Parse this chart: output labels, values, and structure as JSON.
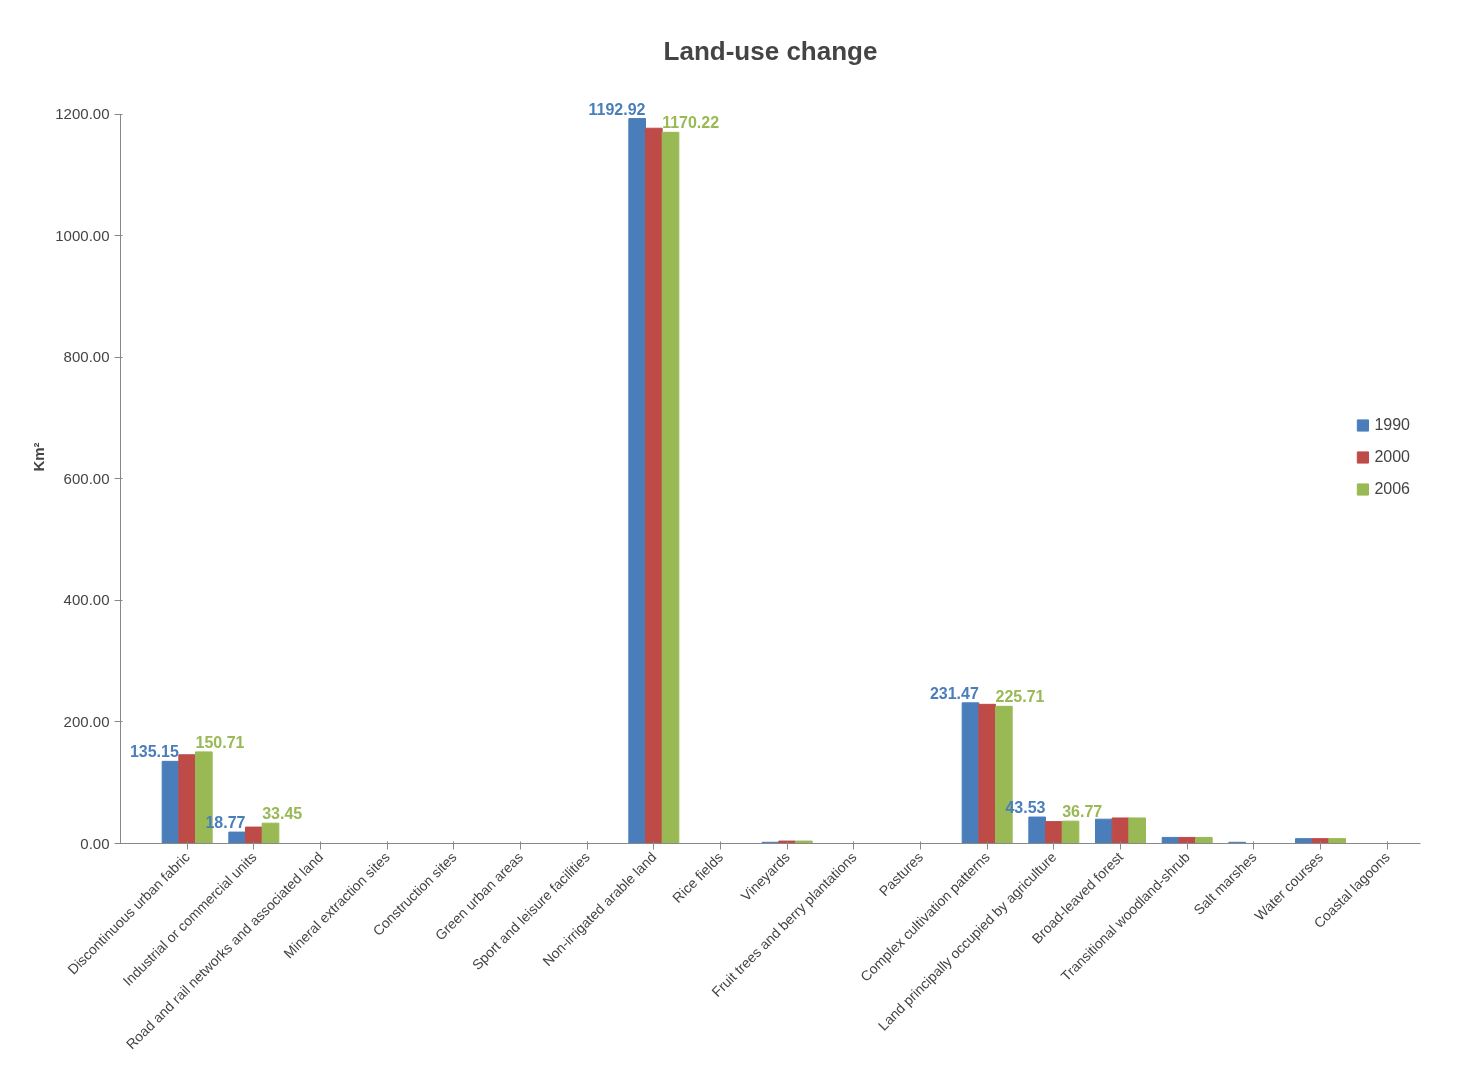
{
  "chart_data": {
    "type": "bar",
    "title": "Land-use change",
    "ylabel": "Km²",
    "categories": [
      "Discontinuous urban fabric",
      "Industrial or commercial units",
      "Road and rail networks and associated land",
      "Mineral extraction sites",
      "Construction sites",
      "Green urban areas",
      "Sport and leisure facilities",
      "Non-irrigated arable land",
      "Rice fields",
      "Vineyards",
      "Fruit trees and berry plantations",
      "Pastures",
      "Complex cultivation patterns",
      "Land principally occupied by agriculture",
      "Broad-leaved forest",
      "Transitional woodland-shrub",
      "Salt marshes",
      "Water courses",
      "Coastal lagoons"
    ],
    "series": [
      {
        "name": "1990",
        "color": "#4a7ebb",
        "values": [
          135.15,
          18.77,
          0,
          0,
          0,
          0,
          0,
          1192.92,
          0,
          2,
          0,
          0,
          231.47,
          43.53,
          40,
          10,
          2,
          8,
          0
        ],
        "value_labels": [
          "135.15",
          "18.77",
          null,
          null,
          null,
          null,
          null,
          "1192.92",
          null,
          null,
          null,
          null,
          "231.47",
          "43.53",
          null,
          null,
          null,
          null,
          null
        ]
      },
      {
        "name": "2000",
        "color": "#be4b48",
        "values": [
          146,
          27,
          0,
          0,
          0,
          0,
          0,
          1177,
          0,
          4,
          0,
          0,
          229,
          36,
          42,
          10,
          0,
          8,
          0
        ]
      },
      {
        "name": "2006",
        "color": "#98b954",
        "values": [
          150.71,
          33.45,
          0,
          0,
          0,
          0,
          0,
          1170.22,
          0,
          4,
          0,
          0,
          225.71,
          36.77,
          42,
          10,
          0,
          8,
          0
        ],
        "value_labels": [
          "150.71",
          "33.45",
          null,
          null,
          null,
          null,
          null,
          "1170.22",
          null,
          null,
          null,
          null,
          "225.71",
          "36.77",
          null,
          null,
          null,
          null,
          null
        ]
      }
    ],
    "ylim": [
      0,
      1200
    ],
    "yticks": [
      {
        "value": 0,
        "label": "0.00"
      },
      {
        "value": 200,
        "label": "200.00"
      },
      {
        "value": 400,
        "label": "400.00"
      },
      {
        "value": 600,
        "label": "600.00"
      },
      {
        "value": 800,
        "label": "800.00"
      },
      {
        "value": 1000,
        "label": "1000.00"
      },
      {
        "value": 1200,
        "label": "1200.00"
      }
    ],
    "grid": false,
    "legend": "right"
  }
}
